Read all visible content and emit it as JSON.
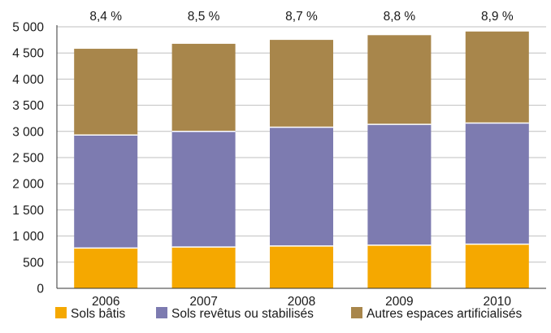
{
  "chart_data": {
    "type": "bar",
    "stacked": true,
    "title": "",
    "xlabel": "",
    "ylabel": "",
    "ylim": [
      0,
      5000
    ],
    "yticks": [
      0,
      500,
      1000,
      1500,
      2000,
      2500,
      3000,
      3500,
      4000,
      4500,
      5000
    ],
    "ytick_labels": [
      "0",
      "500",
      "1 000",
      "1 500",
      "2 000",
      "2 500",
      "3 000",
      "3 500",
      "4 000",
      "4 500",
      "5 000"
    ],
    "grid": true,
    "legend_position": "bottom",
    "categories": [
      "2006",
      "2007",
      "2008",
      "2009",
      "2010"
    ],
    "series": [
      {
        "name": "Sols bâtis",
        "color": "#f5a800",
        "values": [
          770,
          790,
          810,
          825,
          845
        ]
      },
      {
        "name": "Sols revêtus ou stabilisés",
        "color": "#7d7bb0",
        "values": [
          2160,
          2210,
          2270,
          2310,
          2315
        ]
      },
      {
        "name": "Autres espaces artificialisés",
        "color": "#a8864b",
        "values": [
          1650,
          1675,
          1670,
          1705,
          1750
        ]
      }
    ],
    "top_labels": [
      "8,4 %",
      "8,5 %",
      "8,7 %",
      "8,8 %",
      "8,9 %"
    ]
  }
}
